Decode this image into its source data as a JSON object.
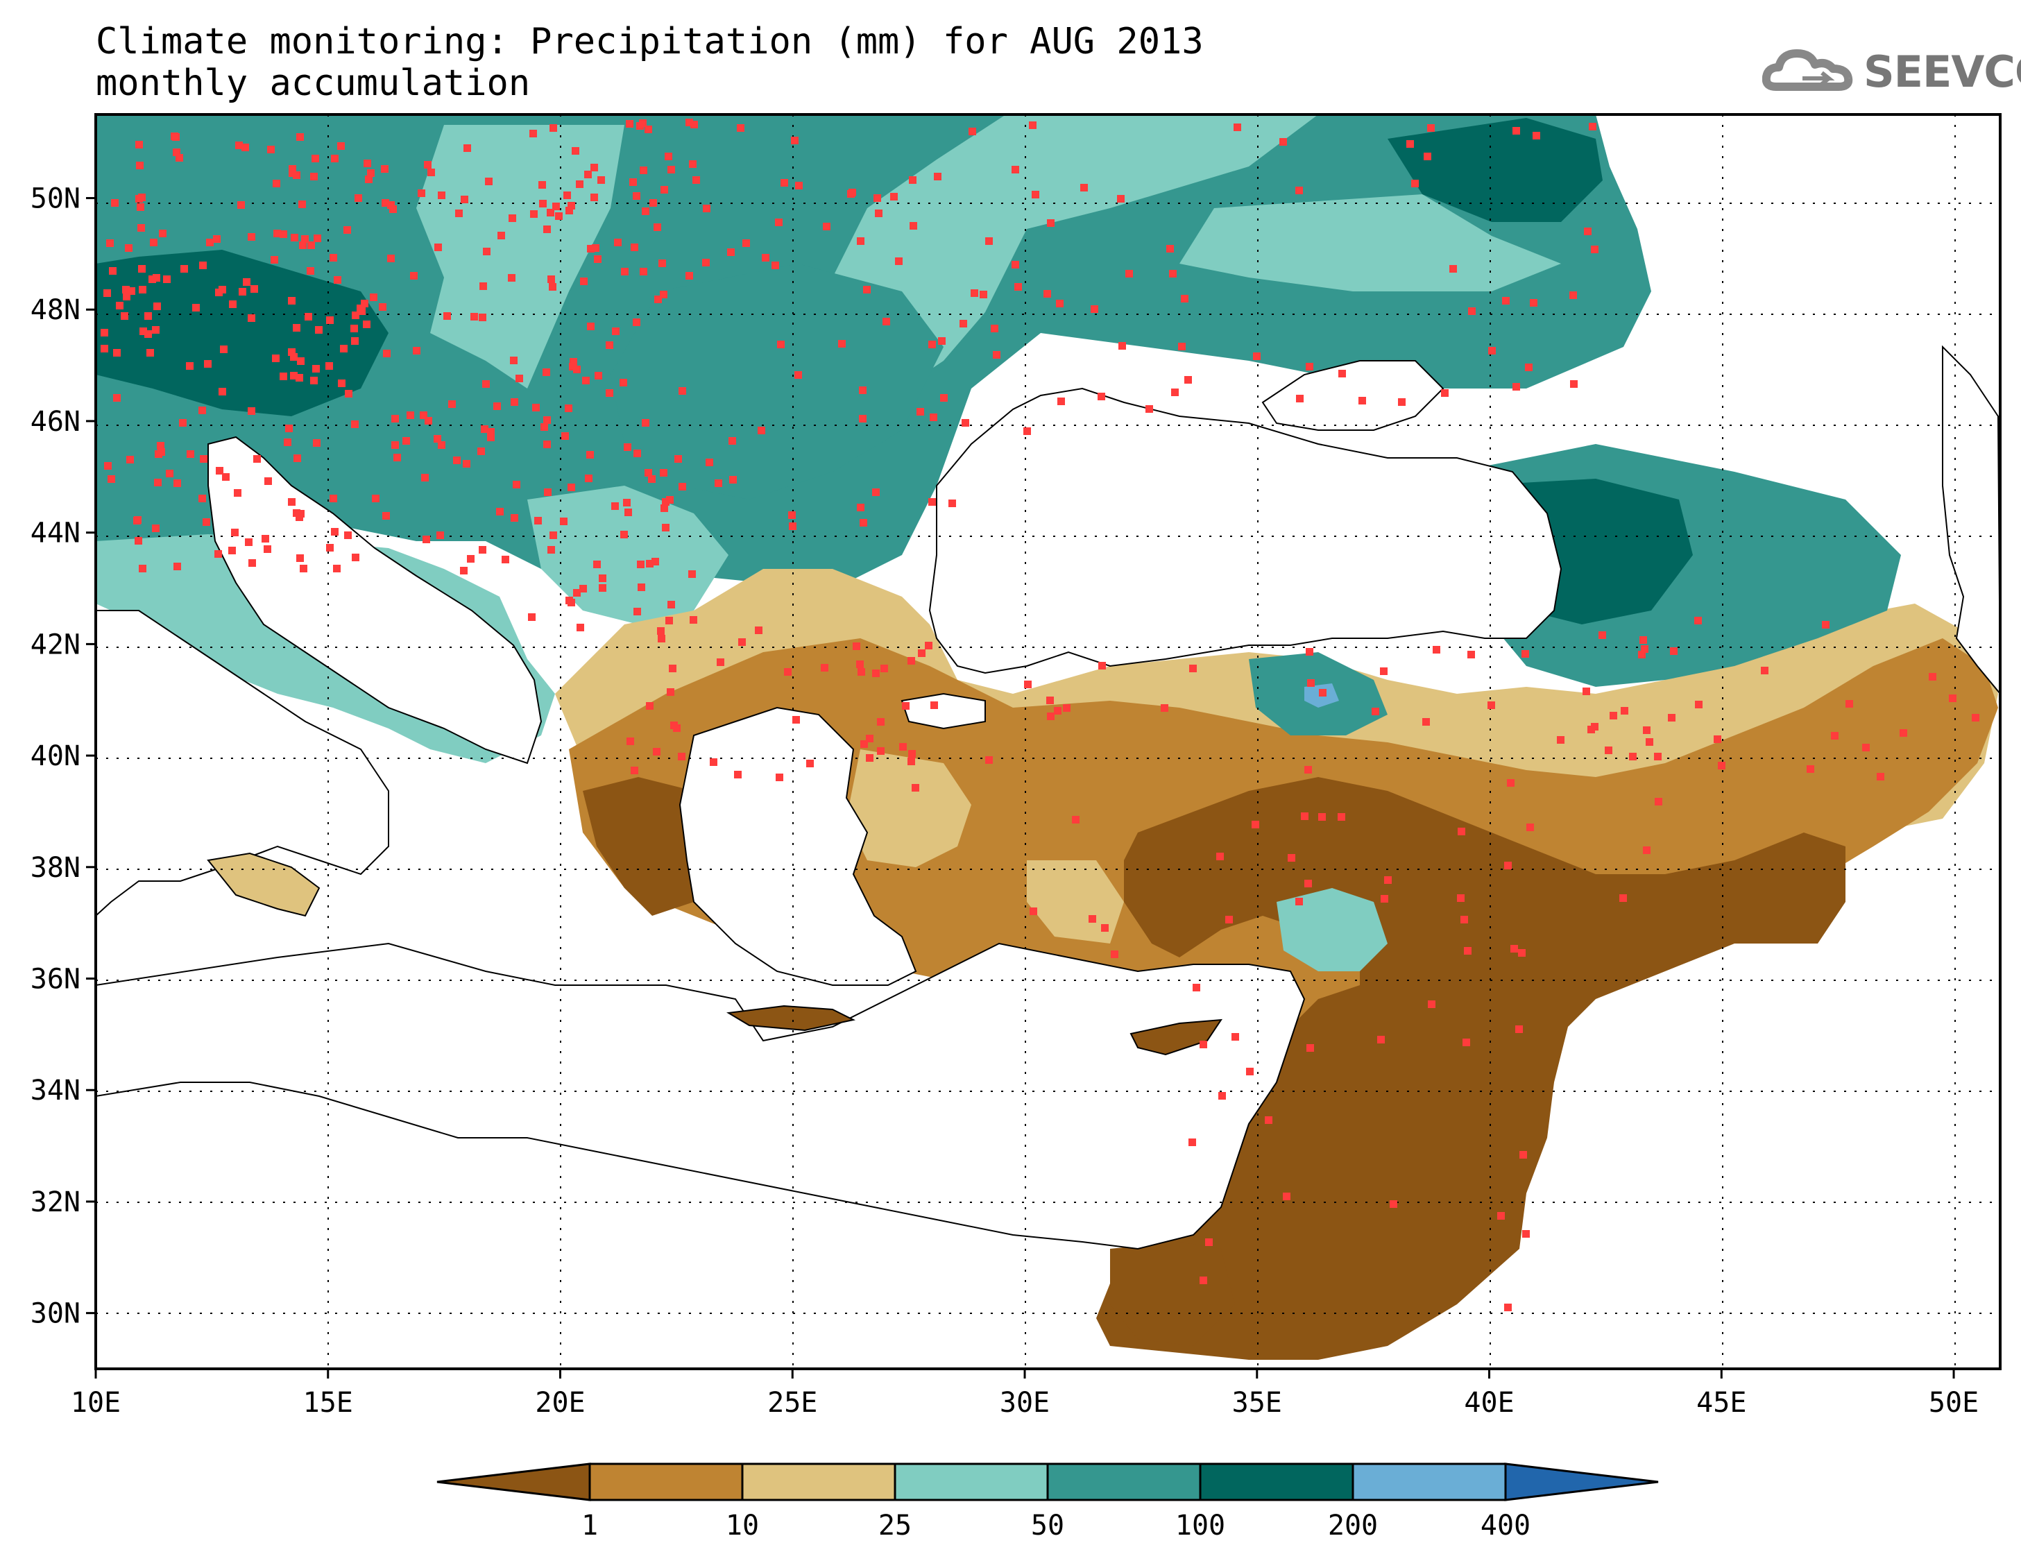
{
  "title": {
    "line1": "Climate monitoring: Precipitation (mm) for AUG 2013",
    "line2": "monthly accumulation"
  },
  "logo": {
    "text": "SEEVCCC",
    "icon": "cloud-icon"
  },
  "map": {
    "lon_range": [
      10,
      51
    ],
    "lat_range": [
      29,
      51.5
    ],
    "lon_ticks": [
      "10E",
      "15E",
      "20E",
      "25E",
      "30E",
      "35E",
      "40E",
      "45E",
      "50E"
    ],
    "lat_ticks": [
      "30N",
      "32N",
      "34N",
      "36N",
      "38N",
      "40N",
      "42N",
      "44N",
      "46N",
      "48N",
      "50N"
    ],
    "grid": "dotted"
  },
  "colorbar": {
    "labels": [
      "1",
      "10",
      "25",
      "50",
      "100",
      "200",
      "400"
    ],
    "colors": [
      "#8c5514",
      "#bf8432",
      "#dfc37e",
      "#80cdc1",
      "#35978f",
      "#01665e",
      "#6aaed6",
      "#2166ac"
    ]
  },
  "colors": {
    "station": "#ff3c3c",
    "sea": "#ffffff"
  }
}
